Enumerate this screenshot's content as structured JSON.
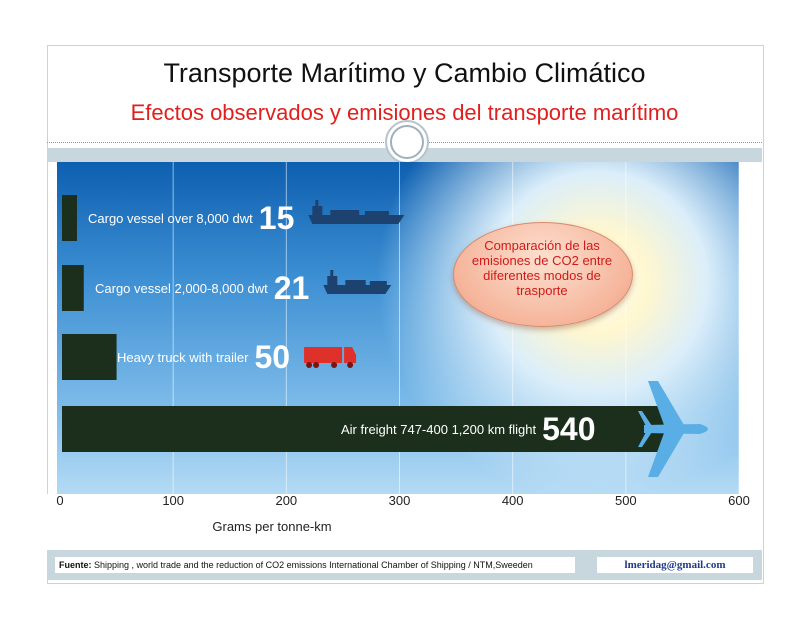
{
  "slide": {
    "title": "Transporte Marítimo y Cambio Climático",
    "subtitle": "Efectos observados y emisiones del transporte marítimo",
    "callout": "Comparación de las emisiones de CO2 entre diferentes modos de trasporte",
    "source_label": "Fuente:",
    "source_text": "Shipping , world trade and the reduction of CO2 emissions International Chamber of Shipping / NTM,Sweeden",
    "email": "lmeridag@gmail.com"
  },
  "chart_data": {
    "type": "bar",
    "orientation": "horizontal",
    "categories": [
      "Cargo vessel over 8,000 dwt",
      "Cargo vessel 2,000-8,000 dwt",
      "Heavy truck with trailer",
      "Air freight 747-400 1,200 km flight"
    ],
    "values": [
      15,
      21,
      50,
      540
    ],
    "value_labels": [
      "15",
      "21",
      "50",
      "540"
    ],
    "icons": [
      "cargo-ship-icon",
      "small-cargo-ship-icon",
      "truck-icon",
      "airplane-icon"
    ],
    "xlabel": "Grams per tonne-km",
    "ylabel": "",
    "xlim": [
      0,
      600
    ],
    "xticks": [
      0,
      100,
      200,
      300,
      400,
      500,
      600
    ],
    "grid": "vertical",
    "colors": {
      "bar": "#1b2f1c",
      "ship": "#1d4270",
      "truck": "#e0302a",
      "plane": "#5aaee6",
      "label": "#ffffff"
    }
  }
}
